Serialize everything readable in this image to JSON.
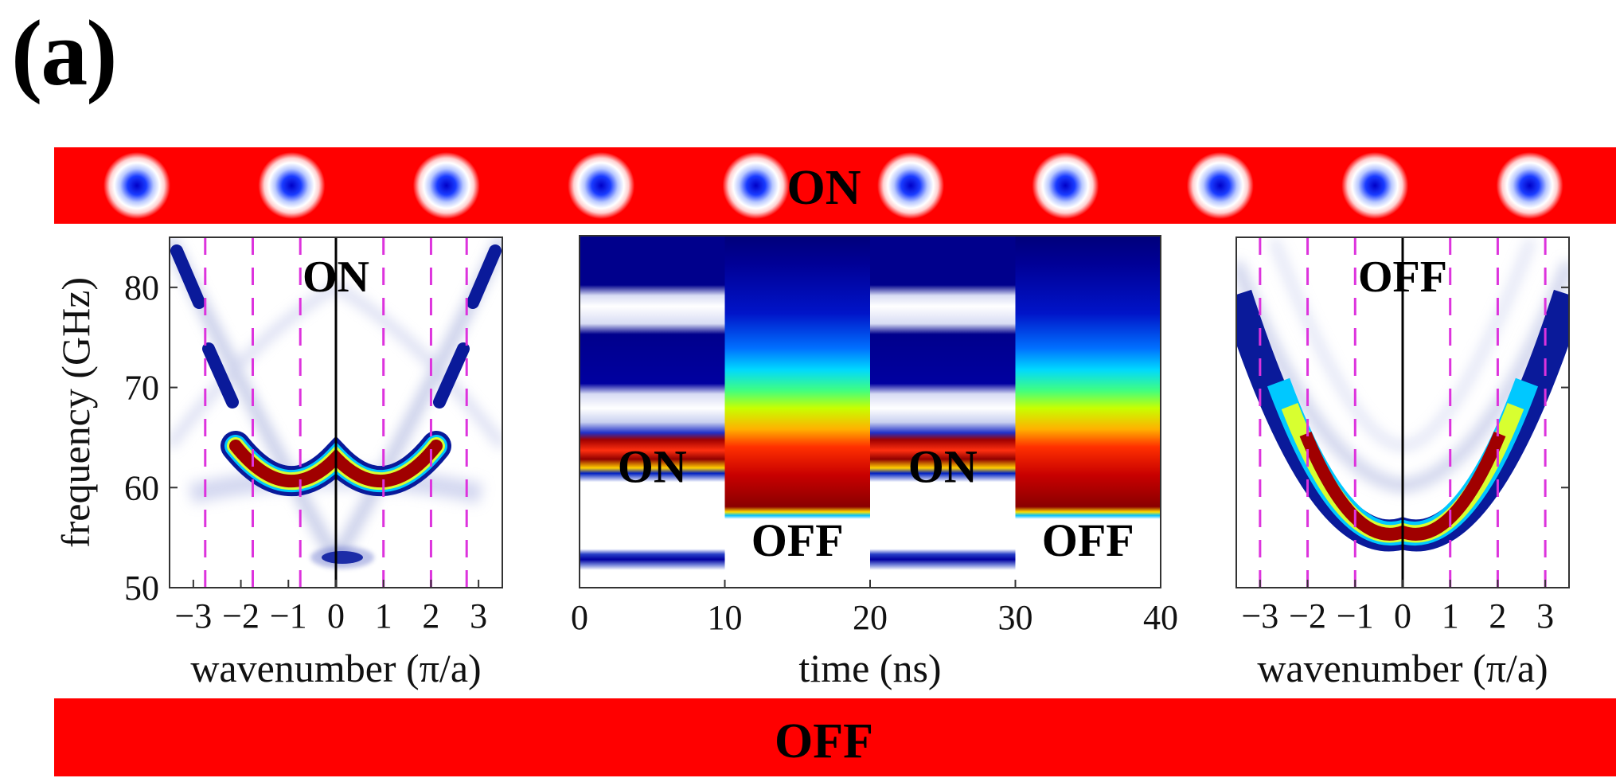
{
  "figure": {
    "panel_label": "(a)",
    "top_bar_text": "ON",
    "bottom_bar_text": "OFF",
    "colors": {
      "bar_red": "#ff0000",
      "spot_blue": "#0000ff",
      "dashed_magenta": "#dd33dd"
    }
  },
  "chart_data": [
    {
      "type": "heatmap",
      "title": "",
      "inset_text": "ON",
      "xlabel": "wavenumber (π/a)",
      "ylabel": "frequency (GHz)",
      "xlim": [
        -3.5,
        3.5
      ],
      "ylim": [
        50,
        85
      ],
      "xticks": [
        -3,
        -2,
        -1,
        0,
        1,
        2,
        3
      ],
      "xtick_labels": [
        "−3",
        "−2",
        "−1",
        "0",
        "1",
        "2",
        "3"
      ],
      "yticks": [
        50,
        60,
        70,
        80
      ],
      "ytick_labels": [
        "50",
        "60",
        "70",
        "80"
      ],
      "dashed_lines_x": [
        -2.75,
        -1.75,
        -0.75,
        1,
        2,
        2.75
      ]
    },
    {
      "type": "heatmap",
      "title": "",
      "xlabel": "time (ns)",
      "xlim": [
        0,
        40
      ],
      "ylim": [
        50,
        85
      ],
      "xticks": [
        0,
        10,
        20,
        30,
        40
      ],
      "xtick_labels": [
        "0",
        "10",
        "20",
        "30",
        "40"
      ],
      "segments": [
        {
          "label": "ON",
          "t_start": 0,
          "t_end": 10
        },
        {
          "label": "OFF",
          "t_start": 10,
          "t_end": 20
        },
        {
          "label": "ON",
          "t_start": 20,
          "t_end": 30
        },
        {
          "label": "OFF",
          "t_start": 30,
          "t_end": 40
        }
      ]
    },
    {
      "type": "heatmap",
      "title": "",
      "inset_text": "OFF",
      "xlabel": "wavenumber (π/a)",
      "xlim": [
        -3.5,
        3.5
      ],
      "ylim": [
        50,
        85
      ],
      "xticks": [
        -3,
        -2,
        -1,
        0,
        1,
        2,
        3
      ],
      "xtick_labels": [
        "−3",
        "−2",
        "−1",
        "0",
        "1",
        "2",
        "3"
      ],
      "dashed_lines_x": [
        -3,
        -2,
        -1,
        1,
        2,
        3
      ]
    }
  ]
}
